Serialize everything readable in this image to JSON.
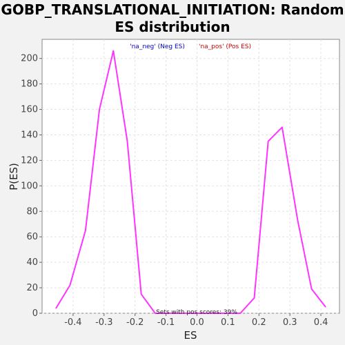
{
  "chart_data": {
    "type": "line",
    "title_line1": "GOBP_TRANSLATIONAL_INITIATION: Random",
    "title_line2": "ES distribution",
    "xlabel": "ES",
    "ylabel": "P(ES)",
    "xlim": [
      -0.5,
      0.46
    ],
    "ylim": [
      0,
      215
    ],
    "x_ticks": [
      -0.4,
      -0.3,
      -0.2,
      -0.1,
      0.0,
      0.1,
      0.2,
      0.3,
      0.4
    ],
    "x_tick_labels": [
      "-0.4",
      "-0.3",
      "-0.2",
      "-0.1",
      "0.0",
      "0.1",
      "0.2",
      "0.3",
      "0.4"
    ],
    "y_ticks": [
      0,
      20,
      40,
      60,
      80,
      100,
      120,
      140,
      160,
      180,
      200
    ],
    "y_tick_labels": [
      "0",
      "20",
      "40",
      "60",
      "80",
      "100",
      "120",
      "140",
      "160",
      "180",
      "200"
    ],
    "grid": true,
    "legend": [
      {
        "label": "'na_neg' (Neg ES)",
        "color": "#0000cc"
      },
      {
        "label": "'na_pos' (Pos ES)",
        "color": "#cc0000"
      }
    ],
    "legend_placement": "top-center",
    "annotation": "Sets with pos scores: 39%",
    "series": [
      {
        "color": "#ff33ff",
        "x": [
          -0.455,
          -0.41,
          -0.36,
          -0.315,
          -0.27,
          -0.225,
          -0.18,
          -0.135,
          -0.09,
          -0.045,
          0.0,
          0.045,
          0.09,
          0.14,
          0.185,
          0.23,
          0.275,
          0.325,
          0.37,
          0.415
        ],
        "y": [
          4,
          22,
          65,
          160,
          206,
          135,
          15,
          0,
          0,
          0,
          0,
          0,
          0,
          0,
          12,
          135,
          146,
          73,
          19,
          5
        ]
      }
    ]
  }
}
